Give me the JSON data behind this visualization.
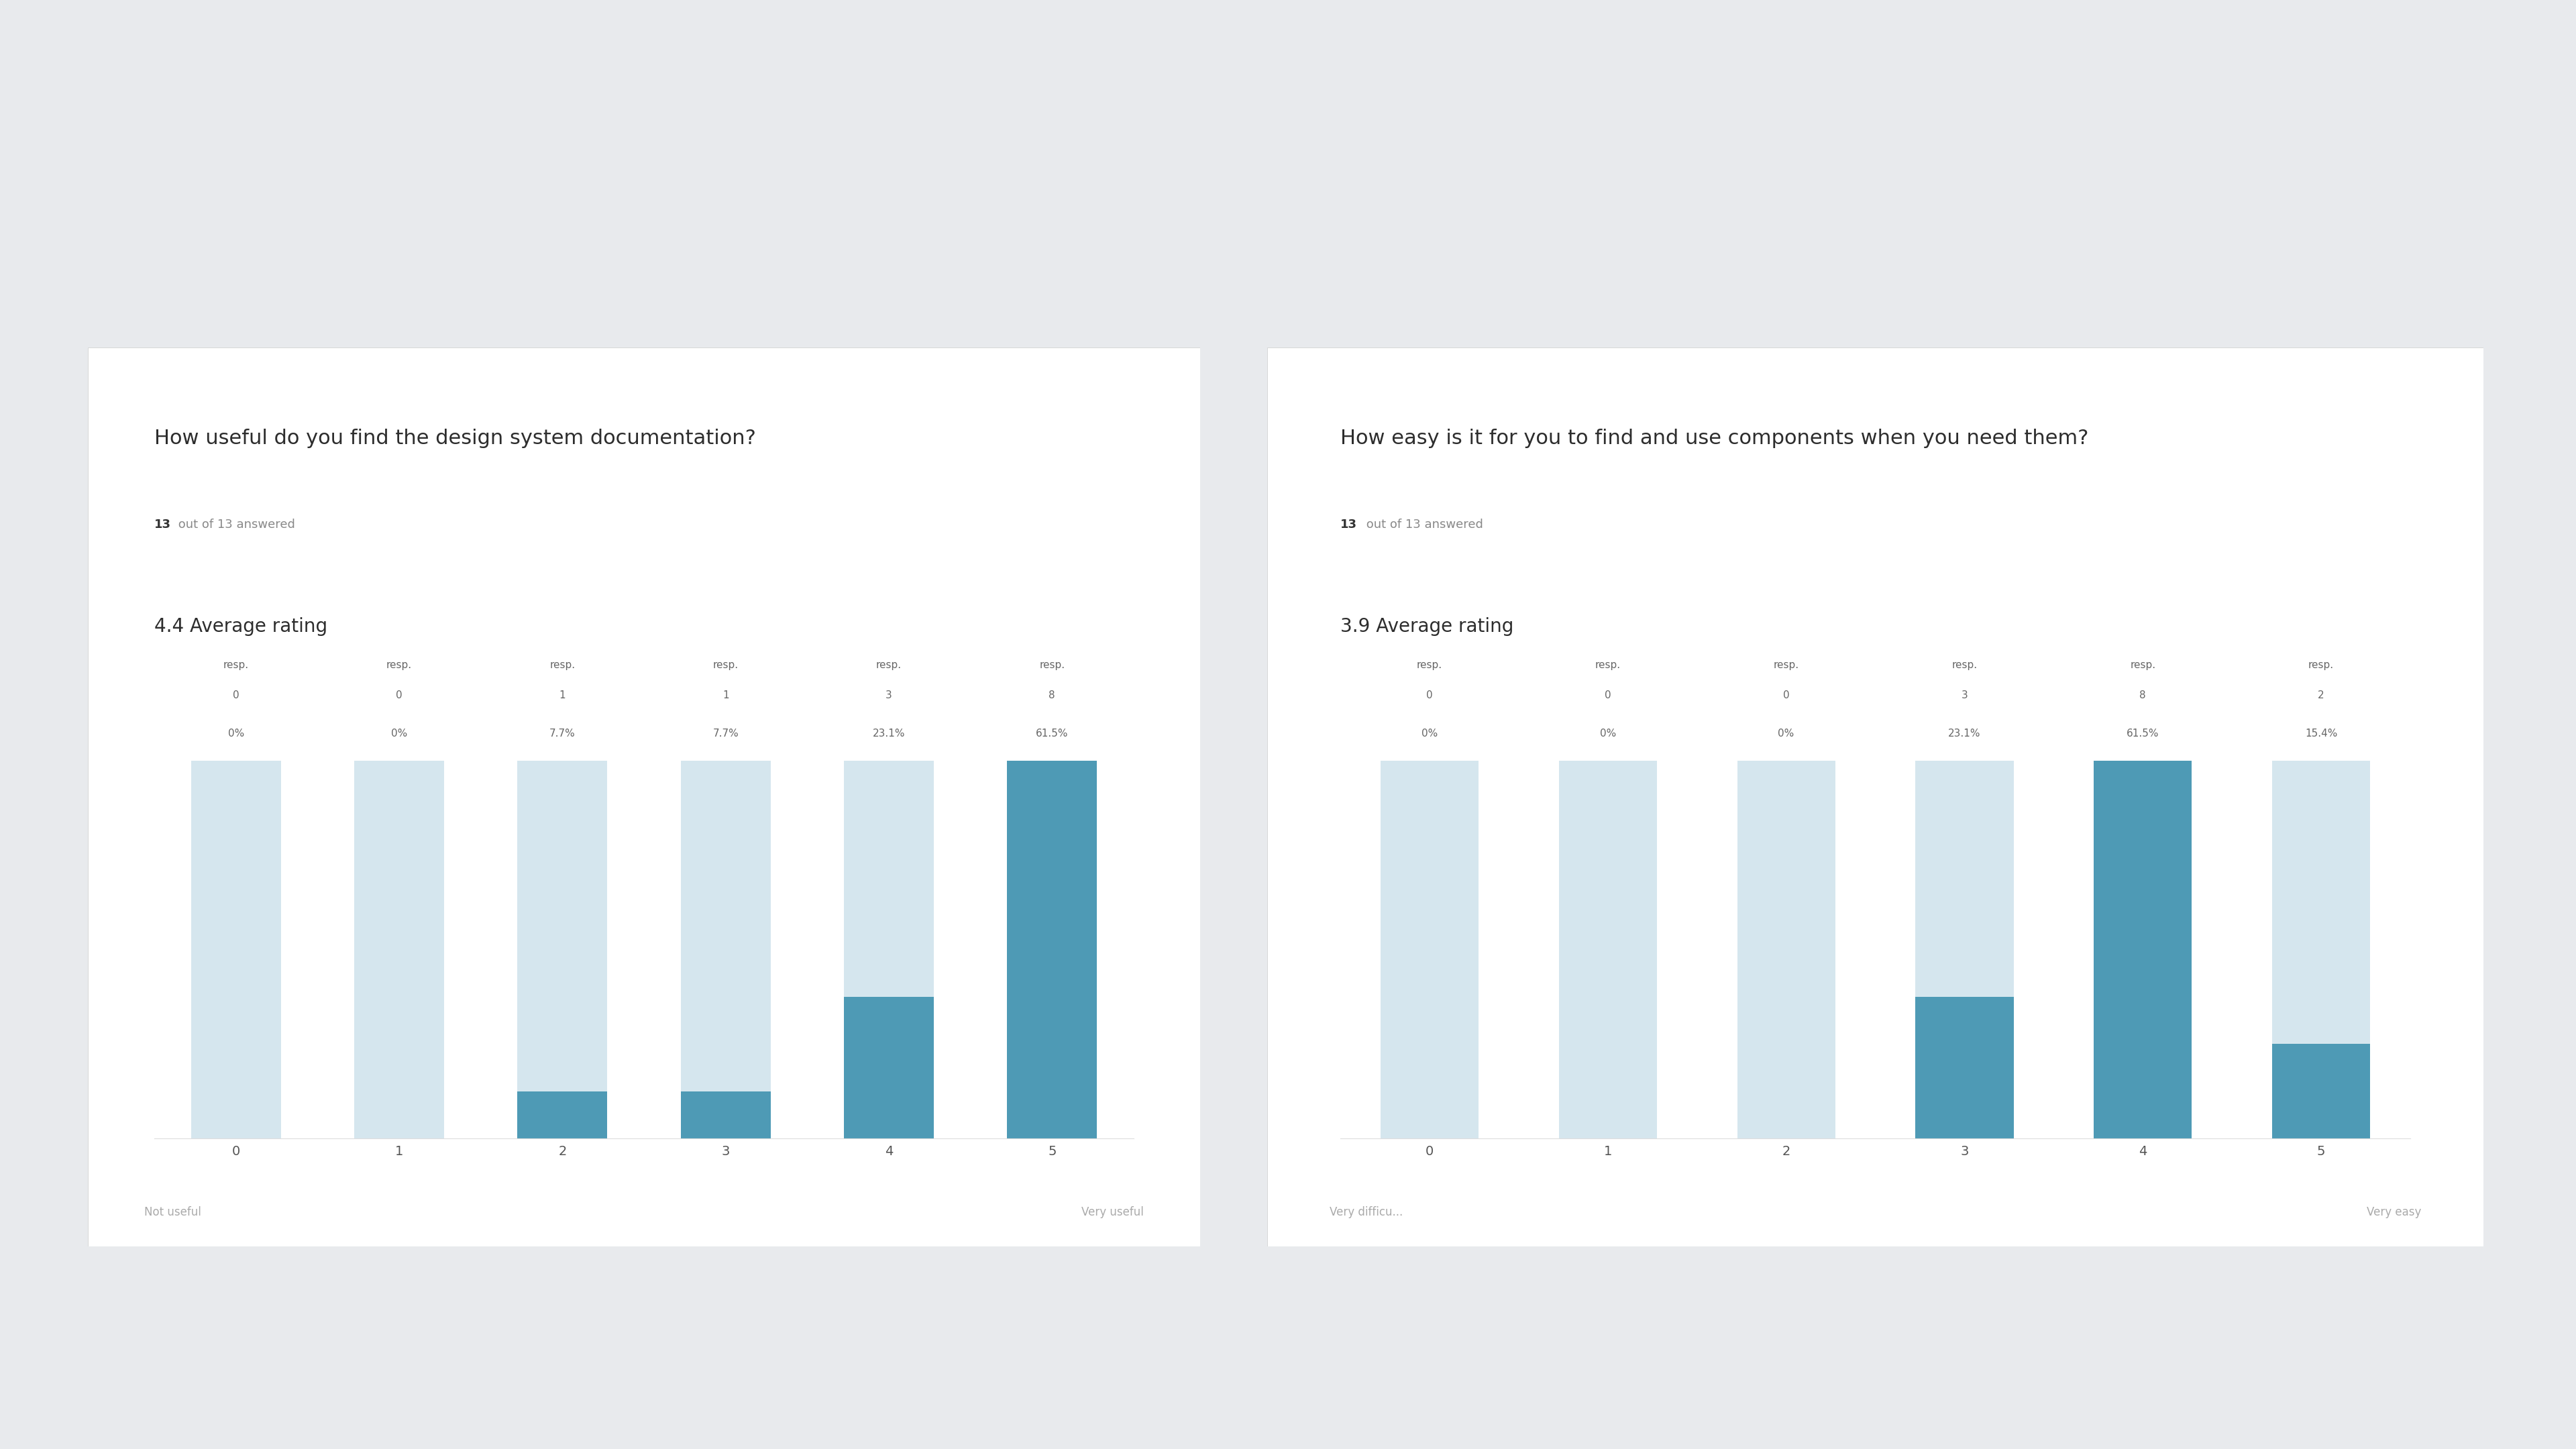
{
  "background_color": "#e8eaed",
  "card_color": "#ffffff",
  "chart1": {
    "title": "How useful do you find the design system documentation?",
    "subtitle_bold": "13",
    "subtitle_rest": " out of 13 answered",
    "avg_label": "4.4 Average rating",
    "categories": [
      "0",
      "1",
      "2",
      "3",
      "4",
      "5"
    ],
    "percentages": [
      "0%",
      "0%",
      "7.7%",
      "7.7%",
      "23.1%",
      "61.5%"
    ],
    "counts": [
      "0",
      "0",
      "1",
      "1",
      "3",
      "8"
    ],
    "values": [
      0,
      0,
      1,
      1,
      3,
      8
    ],
    "max_val": 8,
    "label_left": "Not useful",
    "label_right": "Very useful",
    "bar_color_active": "#4e9ab5",
    "bar_color_inactive": "#d5e6ee"
  },
  "chart2": {
    "title": "How easy is it for you to find and use components when you need them?",
    "subtitle_bold": "13",
    "subtitle_rest": " out of 13 answered",
    "avg_label": "3.9 Average rating",
    "categories": [
      "0",
      "1",
      "2",
      "3",
      "4",
      "5"
    ],
    "percentages": [
      "0%",
      "0%",
      "0%",
      "23.1%",
      "61.5%",
      "15.4%"
    ],
    "counts": [
      "0",
      "0",
      "0",
      "3",
      "8",
      "2"
    ],
    "values": [
      0,
      0,
      0,
      3,
      8,
      2
    ],
    "max_val": 8,
    "label_left": "Very difficu...",
    "label_right": "Very easy",
    "bar_color_active": "#4e9ab5",
    "bar_color_inactive": "#d5e6ee"
  }
}
